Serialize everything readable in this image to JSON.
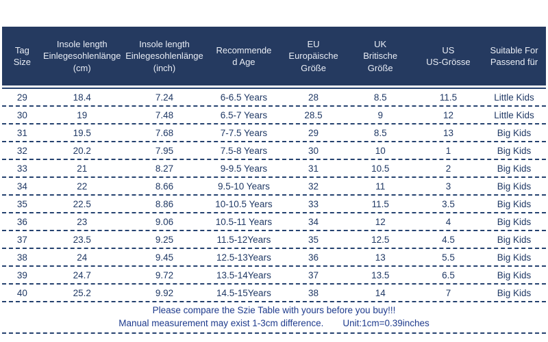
{
  "table": {
    "columns": [
      {
        "id": "tag_size",
        "label": "Tag\nSize"
      },
      {
        "id": "insole_cm",
        "label": "Insole length\nEinlegesohlenlänge\n(cm)"
      },
      {
        "id": "insole_inch",
        "label": "Insole length\nEinlegesohlenlänge\n(inch)"
      },
      {
        "id": "age",
        "label": "Recommende\nd Age"
      },
      {
        "id": "eu",
        "label": "EU\nEuropäische\nGröße"
      },
      {
        "id": "uk",
        "label": "UK\nBritische\nGröße"
      },
      {
        "id": "us",
        "label": "US\nUS-Grösse"
      },
      {
        "id": "suitable",
        "label": "Suitable For\nPassend für"
      }
    ],
    "rows": [
      [
        "29",
        "18.4",
        "7.24",
        "6-6.5 Years",
        "28",
        "8.5",
        "11.5",
        "Little Kids"
      ],
      [
        "30",
        "19",
        "7.48",
        "6.5-7 Years",
        "28.5",
        "9",
        "12",
        "Little Kids"
      ],
      [
        "31",
        "19.5",
        "7.68",
        "7-7.5 Years",
        "29",
        "8.5",
        "13",
        "Big Kids"
      ],
      [
        "32",
        "20.2",
        "7.95",
        "7.5-8 Years",
        "30",
        "10",
        "1",
        "Big Kids"
      ],
      [
        "33",
        "21",
        "8.27",
        "9-9.5 Years",
        "31",
        "10.5",
        "2",
        "Big Kids"
      ],
      [
        "34",
        "22",
        "8.66",
        "9.5-10 Years",
        "32",
        "11",
        "3",
        "Big Kids"
      ],
      [
        "35",
        "22.5",
        "8.86",
        "10-10.5 Years",
        "33",
        "11.5",
        "3.5",
        "Big Kids"
      ],
      [
        "36",
        "23",
        "9.06",
        "10.5-11 Years",
        "34",
        "12",
        "4",
        "Big Kids"
      ],
      [
        "37",
        "23.5",
        "9.25",
        "11.5-12Years",
        "35",
        "12.5",
        "4.5",
        "Big Kids"
      ],
      [
        "38",
        "24",
        "9.45",
        "12.5-13Years",
        "36",
        "13",
        "5.5",
        "Big Kids"
      ],
      [
        "39",
        "24.7",
        "9.72",
        "13.5-14Years",
        "37",
        "13.5",
        "6.5",
        "Big Kids"
      ],
      [
        "40",
        "25.2",
        "9.92",
        "14.5-15Years",
        "38",
        "14",
        "7",
        "Big Kids"
      ]
    ]
  },
  "notes": {
    "line1": "Please compare the Szie Table with yours before you buy!!!",
    "line2_left": "Manual measurement may exist 1-3cm difference.",
    "line2_right": "Unit:1cm=0.39inches"
  },
  "colors": {
    "header_bg": "#253a60",
    "header_text": "#e9edf5",
    "body_text": "#1f3864",
    "divider": "#23406e",
    "note_text": "#1d3a8c"
  }
}
